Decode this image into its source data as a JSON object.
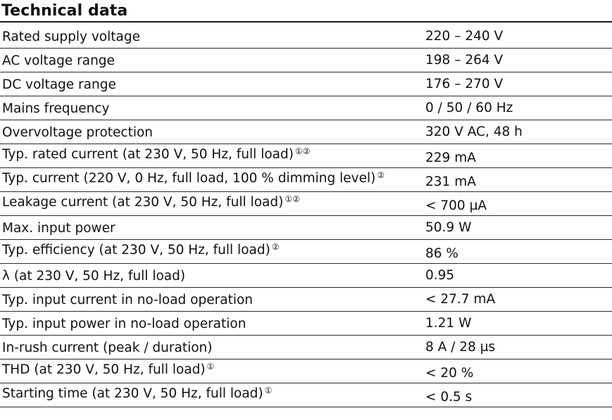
{
  "title": "Technical data",
  "rows": [
    {
      "label": "Rated supply voltage",
      "note": "",
      "value": "220 – 240 V"
    },
    {
      "label": "AC voltage range",
      "note": "",
      "value": "198 – 264 V"
    },
    {
      "label": "DC voltage range",
      "note": "",
      "value": "176 – 270 V"
    },
    {
      "label": "Mains frequency",
      "note": "",
      "value": "0 / 50 / 60 Hz"
    },
    {
      "label": "Overvoltage protection",
      "note": "",
      "value": "320 V AC, 48 h"
    },
    {
      "label": "Typ. rated current (at 230 V, 50 Hz, full load)",
      "note": "①②",
      "value": "229 mA"
    },
    {
      "label": "Typ. current (220 V, 0 Hz, full load, 100 % dimming level)",
      "note": "②",
      "value": "231 mA"
    },
    {
      "label": "Leakage current (at 230 V, 50 Hz, full load)",
      "note": "①②",
      "value": "< 700 µA"
    },
    {
      "label": "Max. input power",
      "note": "",
      "value": "50.9 W"
    },
    {
      "label": "Typ. efficiency (at 230 V, 50 Hz, full load)",
      "note": "②",
      "value": "86 %"
    },
    {
      "label": "λ (at 230 V, 50 Hz, full load)",
      "note": "",
      "value": "0.95"
    },
    {
      "label": "Typ. input current in no-load operation",
      "note": "",
      "value": "< 27.7 mA"
    },
    {
      "label": "Typ. input power in no-load operation",
      "note": "",
      "value": "1.21 W"
    },
    {
      "label": "In-rush current (peak / duration)",
      "note": "",
      "value": "8 A / 28 µs"
    },
    {
      "label": "THD (at 230 V, 50 Hz, full load)",
      "note": "①",
      "value": "< 20 %"
    },
    {
      "label": "Starting time (at 230 V, 50 Hz, full load)",
      "note": "①",
      "value": "< 0.5 s"
    }
  ]
}
